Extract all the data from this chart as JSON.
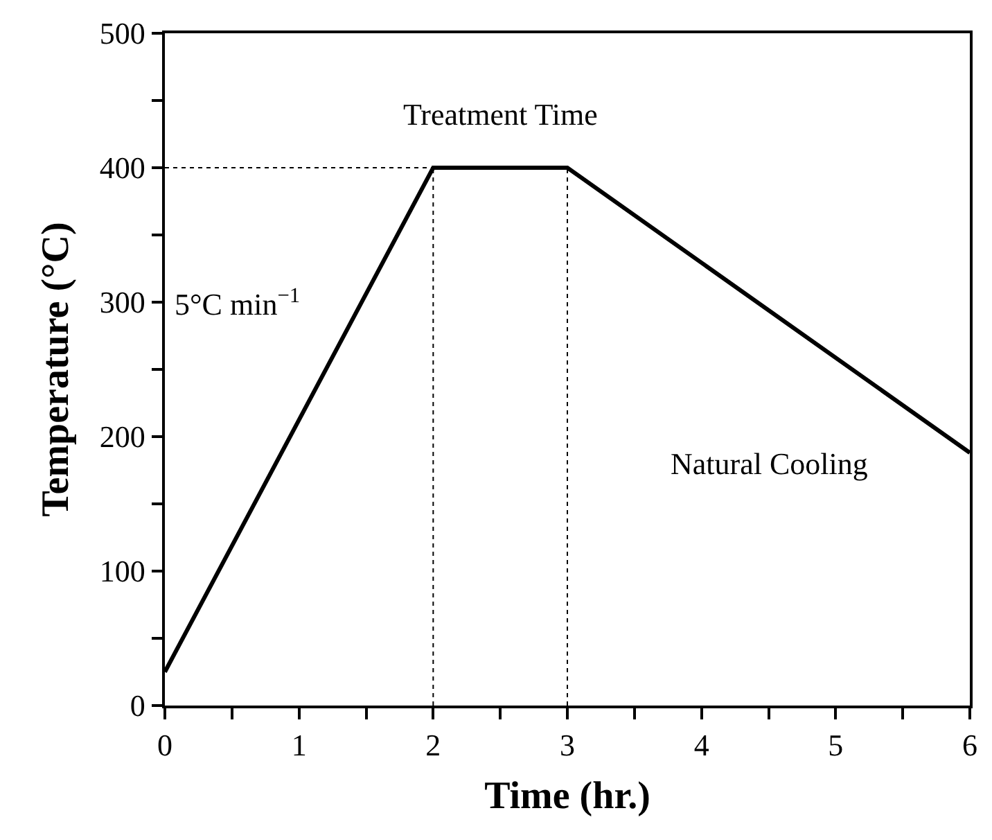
{
  "chart_data": {
    "type": "line",
    "xlabel": "Time (hr.)",
    "ylabel": "Temperature (°C)",
    "xlim": [
      0,
      6
    ],
    "ylim": [
      0,
      500
    ],
    "xticks": [
      0,
      {
        "value": 0.5,
        "label": null
      },
      1,
      {
        "value": 1.5,
        "label": null
      },
      2,
      {
        "value": 2.5,
        "label": null
      },
      3,
      {
        "value": 3.5,
        "label": null
      },
      4,
      {
        "value": 4.5,
        "label": null
      },
      5,
      {
        "value": 5.5,
        "label": null
      },
      6
    ],
    "yticks": [
      0,
      {
        "value": 50,
        "label": null
      },
      100,
      {
        "value": 150,
        "label": null
      },
      200,
      {
        "value": 250,
        "label": null
      },
      300,
      {
        "value": 350,
        "label": null
      },
      400,
      {
        "value": 450,
        "label": null
      },
      500
    ],
    "series": [
      {
        "color": "#000000",
        "x": [
          0,
          2,
          3,
          6
        ],
        "values": [
          25,
          400,
          400,
          188
        ],
        "line_style": "solid"
      },
      {
        "color": "#000000",
        "x": [
          0,
          2
        ],
        "values": [
          400,
          400
        ],
        "line_style": "dotted"
      },
      {
        "color": "#000000",
        "x": [
          2,
          2
        ],
        "values": [
          0,
          400
        ],
        "line_style": "dotted"
      },
      {
        "color": "#000000",
        "x": [
          3,
          3
        ],
        "values": [
          0,
          400
        ],
        "line_style": "dotted"
      }
    ],
    "annotations": [
      "Treatment Time",
      "5°C min$^{−1}$",
      "Natural Cooling"
    ],
    "grid": false,
    "marker": "none"
  }
}
